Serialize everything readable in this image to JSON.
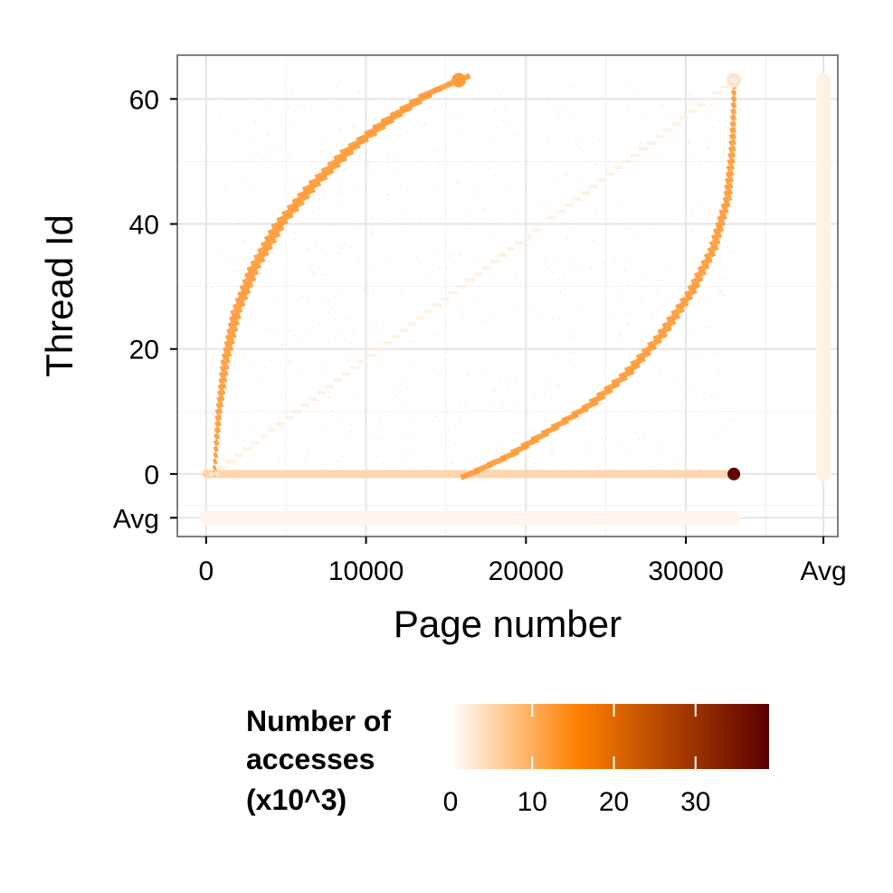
{
  "chart_data": {
    "type": "heatmap",
    "xlabel": "Page number",
    "ylabel": "Thread Id",
    "x_ticks": [
      0,
      10000,
      20000,
      30000
    ],
    "x_tick_labels": [
      "0",
      "10000",
      "20000",
      "30000"
    ],
    "x_extra_label": "Avg",
    "y_ticks": [
      0,
      20,
      40,
      60
    ],
    "y_tick_labels": [
      "0",
      "20",
      "40",
      "60"
    ],
    "y_extra_label": "Avg",
    "xlim": [
      -1800,
      39500
    ],
    "ylim": [
      -10,
      67
    ],
    "x_page_range": [
      0,
      33000
    ],
    "thread_range": [
      0,
      63
    ],
    "grid": true,
    "legend": {
      "title_lines": [
        "Number of",
        "accesses",
        "(x10^3)"
      ],
      "ticks": [
        0,
        10,
        20,
        30
      ],
      "tick_labels": [
        "0",
        "10",
        "20",
        "30"
      ],
      "range": [
        0,
        39
      ],
      "colors": [
        "#ffffff",
        "#ff8000",
        "#5a0000"
      ],
      "placement": "bottom"
    },
    "series": [
      {
        "pattern": "upper-left arc of orange marks",
        "points": [
          [
            500,
            0
          ],
          [
            800,
            10
          ],
          [
            1200,
            18
          ],
          [
            1900,
            26
          ],
          [
            3000,
            33
          ],
          [
            4600,
            40
          ],
          [
            6600,
            46
          ],
          [
            9000,
            52
          ],
          [
            11600,
            57
          ],
          [
            14000,
            61
          ],
          [
            15800,
            63
          ]
        ],
        "value": 12
      },
      {
        "pattern": "lower-right arc of orange marks",
        "points": [
          [
            16500,
            0
          ],
          [
            19000,
            3
          ],
          [
            21500,
            7
          ],
          [
            24000,
            11
          ],
          [
            26300,
            16
          ],
          [
            28400,
            22
          ],
          [
            30300,
            29
          ],
          [
            31700,
            36
          ],
          [
            32600,
            44
          ],
          [
            32900,
            52
          ],
          [
            33000,
            60
          ]
        ],
        "value": 12
      },
      {
        "pattern": "diagonal of pale marks",
        "points": [
          [
            500,
            0
          ],
          [
            33000,
            63
          ]
        ],
        "value": 2
      },
      {
        "pattern": "thread 0 row",
        "thread": 0,
        "x_range": [
          0,
          33000
        ],
        "value": 2,
        "hot_point": {
          "x": 33000,
          "value": 38
        }
      },
      {
        "pattern": "average row",
        "x_range": [
          0,
          33000
        ],
        "value": 0.5
      },
      {
        "pattern": "average column",
        "thread_range": [
          0,
          63
        ],
        "value": 0.5
      }
    ]
  }
}
